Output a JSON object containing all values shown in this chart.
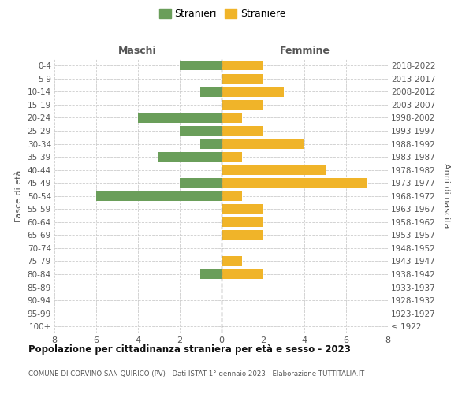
{
  "age_groups": [
    "100+",
    "95-99",
    "90-94",
    "85-89",
    "80-84",
    "75-79",
    "70-74",
    "65-69",
    "60-64",
    "55-59",
    "50-54",
    "45-49",
    "40-44",
    "35-39",
    "30-34",
    "25-29",
    "20-24",
    "15-19",
    "10-14",
    "5-9",
    "0-4"
  ],
  "birth_years": [
    "≤ 1922",
    "1923-1927",
    "1928-1932",
    "1933-1937",
    "1938-1942",
    "1943-1947",
    "1948-1952",
    "1953-1957",
    "1958-1962",
    "1963-1967",
    "1968-1972",
    "1973-1977",
    "1978-1982",
    "1983-1987",
    "1988-1992",
    "1993-1997",
    "1998-2002",
    "2003-2007",
    "2008-2012",
    "2013-2017",
    "2018-2022"
  ],
  "males": [
    0,
    0,
    0,
    0,
    1,
    0,
    0,
    0,
    0,
    0,
    6,
    2,
    0,
    3,
    1,
    2,
    4,
    0,
    1,
    0,
    2
  ],
  "females": [
    0,
    0,
    0,
    0,
    2,
    1,
    0,
    2,
    2,
    2,
    1,
    7,
    5,
    1,
    4,
    2,
    1,
    2,
    3,
    2,
    2
  ],
  "male_color": "#6a9e5a",
  "female_color": "#f0b429",
  "bar_height": 0.75,
  "xlim": 8,
  "title": "Popolazione per cittadinanza straniera per età e sesso - 2023",
  "subtitle": "COMUNE DI CORVINO SAN QUIRICO (PV) - Dati ISTAT 1° gennaio 2023 - Elaborazione TUTTITALIA.IT",
  "legend_male": "Stranieri",
  "legend_female": "Straniere",
  "xlabel_left": "Maschi",
  "xlabel_right": "Femmine",
  "ylabel_left": "Fasce di età",
  "ylabel_right": "Anni di nascita",
  "background_color": "#ffffff",
  "grid_color": "#cccccc"
}
